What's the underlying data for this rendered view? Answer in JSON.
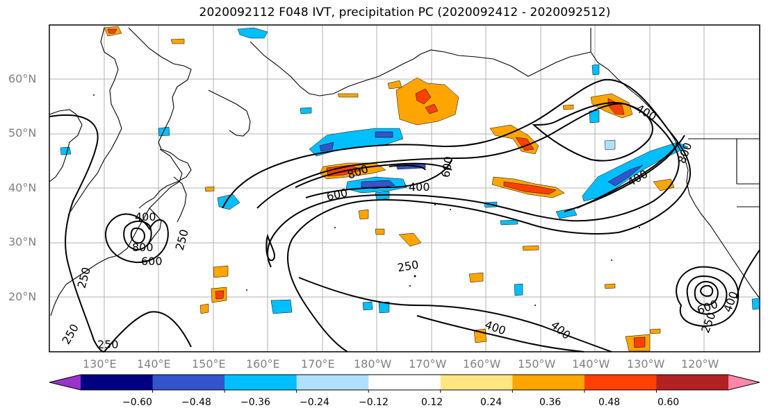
{
  "title": "2020092112 F048 IVT, precipitation PC (2020092412 - 2020092512)",
  "lat_labels": [
    "60°N",
    "50°N",
    "40°N",
    "30°N",
    "20°N"
  ],
  "lon_labels": [
    "130°E",
    "140°E",
    "150°E",
    "160°E",
    "170°E",
    "180°W",
    "170°W",
    "160°W",
    "150°W",
    "140°W",
    "130°W",
    "120°W"
  ],
  "contour_labels": [
    "400",
    "800",
    "600",
    "250",
    "250",
    "250",
    "800",
    "600",
    "400",
    "600",
    "250",
    "400",
    "400",
    "400",
    "400",
    "800",
    "600",
    "400",
    "250",
    "250"
  ],
  "colorbar": {
    "ticks": [
      "−0.60",
      "−0.48",
      "−0.36",
      "−0.24",
      "−0.12",
      "0.12",
      "0.24",
      "0.36",
      "0.48",
      "0.60"
    ],
    "colors": [
      "#9933cc",
      "#000080",
      "#3355cc",
      "#00bfff",
      "#b0e0ff",
      "#ffffff",
      "#ffe680",
      "#ffa500",
      "#ff4000",
      "#b22222",
      "#ff88aa"
    ]
  },
  "colors": {
    "contour": "#000000",
    "grid": "#b0b0b0",
    "coast": "#000000"
  }
}
